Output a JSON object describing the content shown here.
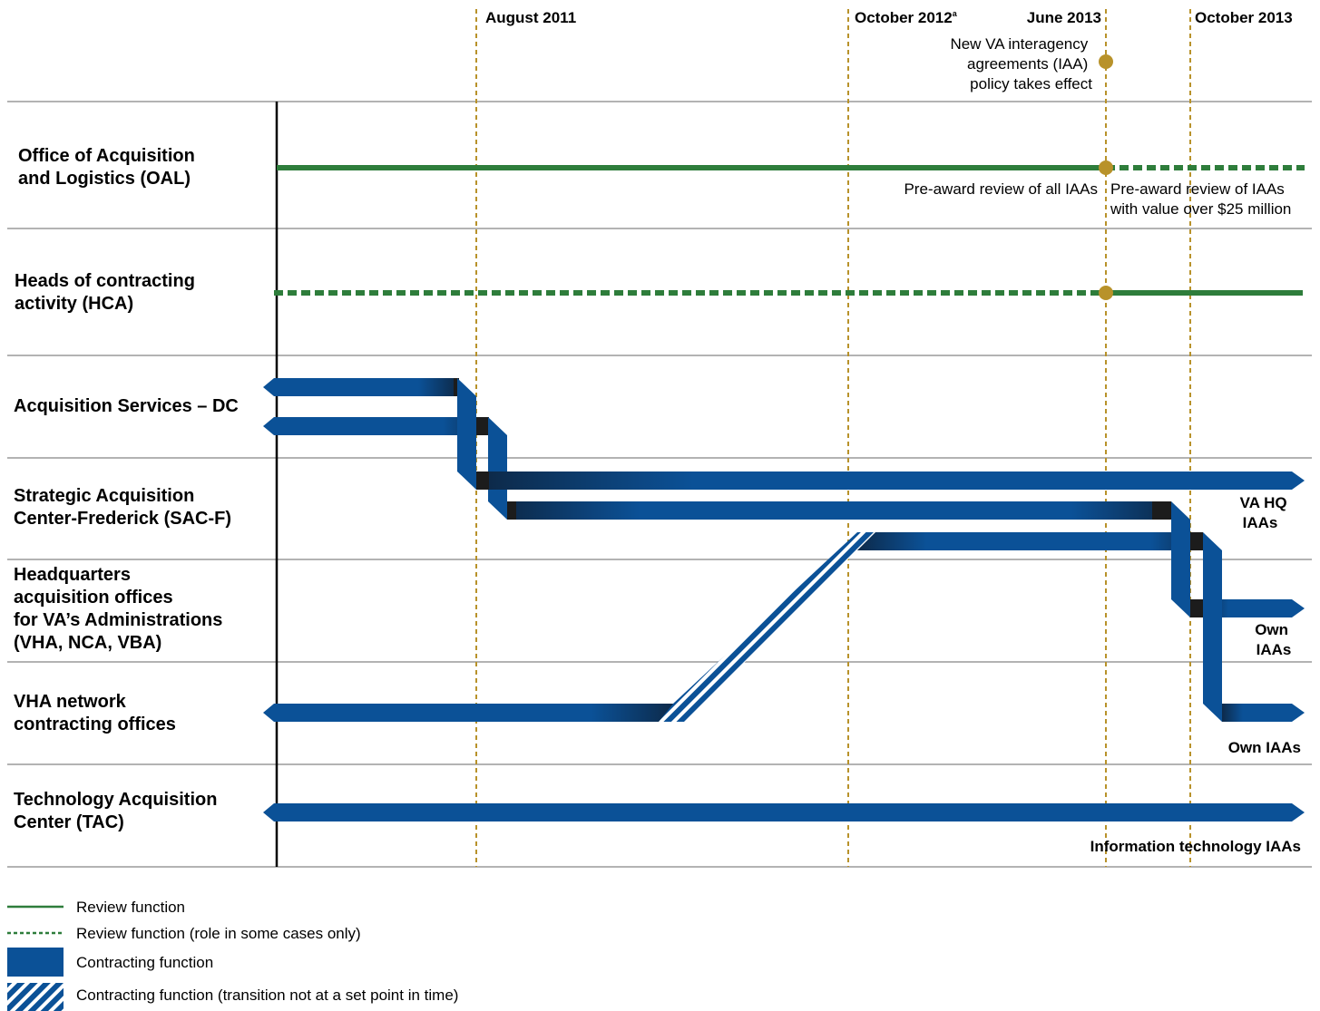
{
  "dates": [
    {
      "label": "August 2011",
      "sup": ""
    },
    {
      "label": "October 2012",
      "sup": "a"
    },
    {
      "label": "June 2013",
      "sup": ""
    },
    {
      "label": "October 2013",
      "sup": ""
    }
  ],
  "policy_note": [
    "New VA interagency",
    "agreements (IAA)",
    "policy takes effect"
  ],
  "rows": [
    {
      "lines": [
        "Office of Acquisition",
        "and Logistics (OAL)"
      ]
    },
    {
      "lines": [
        "Heads of contracting",
        "activity (HCA)"
      ]
    },
    {
      "lines": [
        "Acquisition Services – DC"
      ]
    },
    {
      "lines": [
        "Strategic Acquisition",
        "Center-Frederick (SAC-F)"
      ]
    },
    {
      "lines": [
        "Headquarters",
        "acquisition offices",
        "for VA’s Administrations",
        "(VHA, NCA, VBA)"
      ]
    },
    {
      "lines": [
        "VHA network",
        "contracting offices"
      ]
    },
    {
      "lines": [
        "Technology Acquisition",
        "Center (TAC)"
      ]
    }
  ],
  "oal_notes": {
    "before": "Pre-award review of all IAAs",
    "after": [
      "Pre-award review of IAAs",
      "with value over $25 million"
    ]
  },
  "end_labels": {
    "va_hq": [
      "VA HQ",
      "IAAs"
    ],
    "own_hq": [
      "Own",
      "IAAs"
    ],
    "own_vha": "Own IAAs",
    "it": "Information technology IAAs"
  },
  "legend": [
    {
      "type": "review-solid",
      "label": "Review function"
    },
    {
      "type": "review-dashed",
      "label": "Review function (role in some cases only)"
    },
    {
      "type": "contracting",
      "label": "Contracting function"
    },
    {
      "type": "contracting-hatched",
      "label": "Contracting function (transition not at a set point in time)"
    }
  ],
  "colors": {
    "review_green": "#2e7d3b",
    "contracting_blue": "#0b5197",
    "shadow_dark": "#1c1c1c",
    "date_line_gold": "#b8922a",
    "milestone_gold": "#b8922a",
    "row_divider": "#9a9a9a"
  }
}
